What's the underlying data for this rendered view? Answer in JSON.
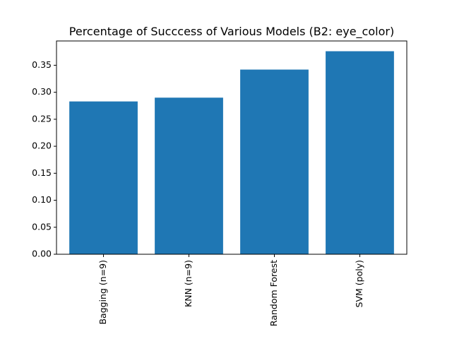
{
  "chart_data": {
    "type": "bar",
    "title": "Percentage of Succcess of Various Models (B2: eye_color)",
    "xlabel": "",
    "ylabel": "",
    "categories": [
      "Bagging (n=9)",
      "KNN (n=9)",
      "Random Forest",
      "SVM (poly)"
    ],
    "values": [
      0.283,
      0.29,
      0.342,
      0.376
    ],
    "ylim": [
      0,
      0.395
    ],
    "yticks": [
      "0.00",
      "0.05",
      "0.10",
      "0.15",
      "0.20",
      "0.25",
      "0.30",
      "0.35"
    ],
    "bar_color": "#1f77b4",
    "grid": false,
    "legend": "none",
    "xtick_rotation": 90
  }
}
